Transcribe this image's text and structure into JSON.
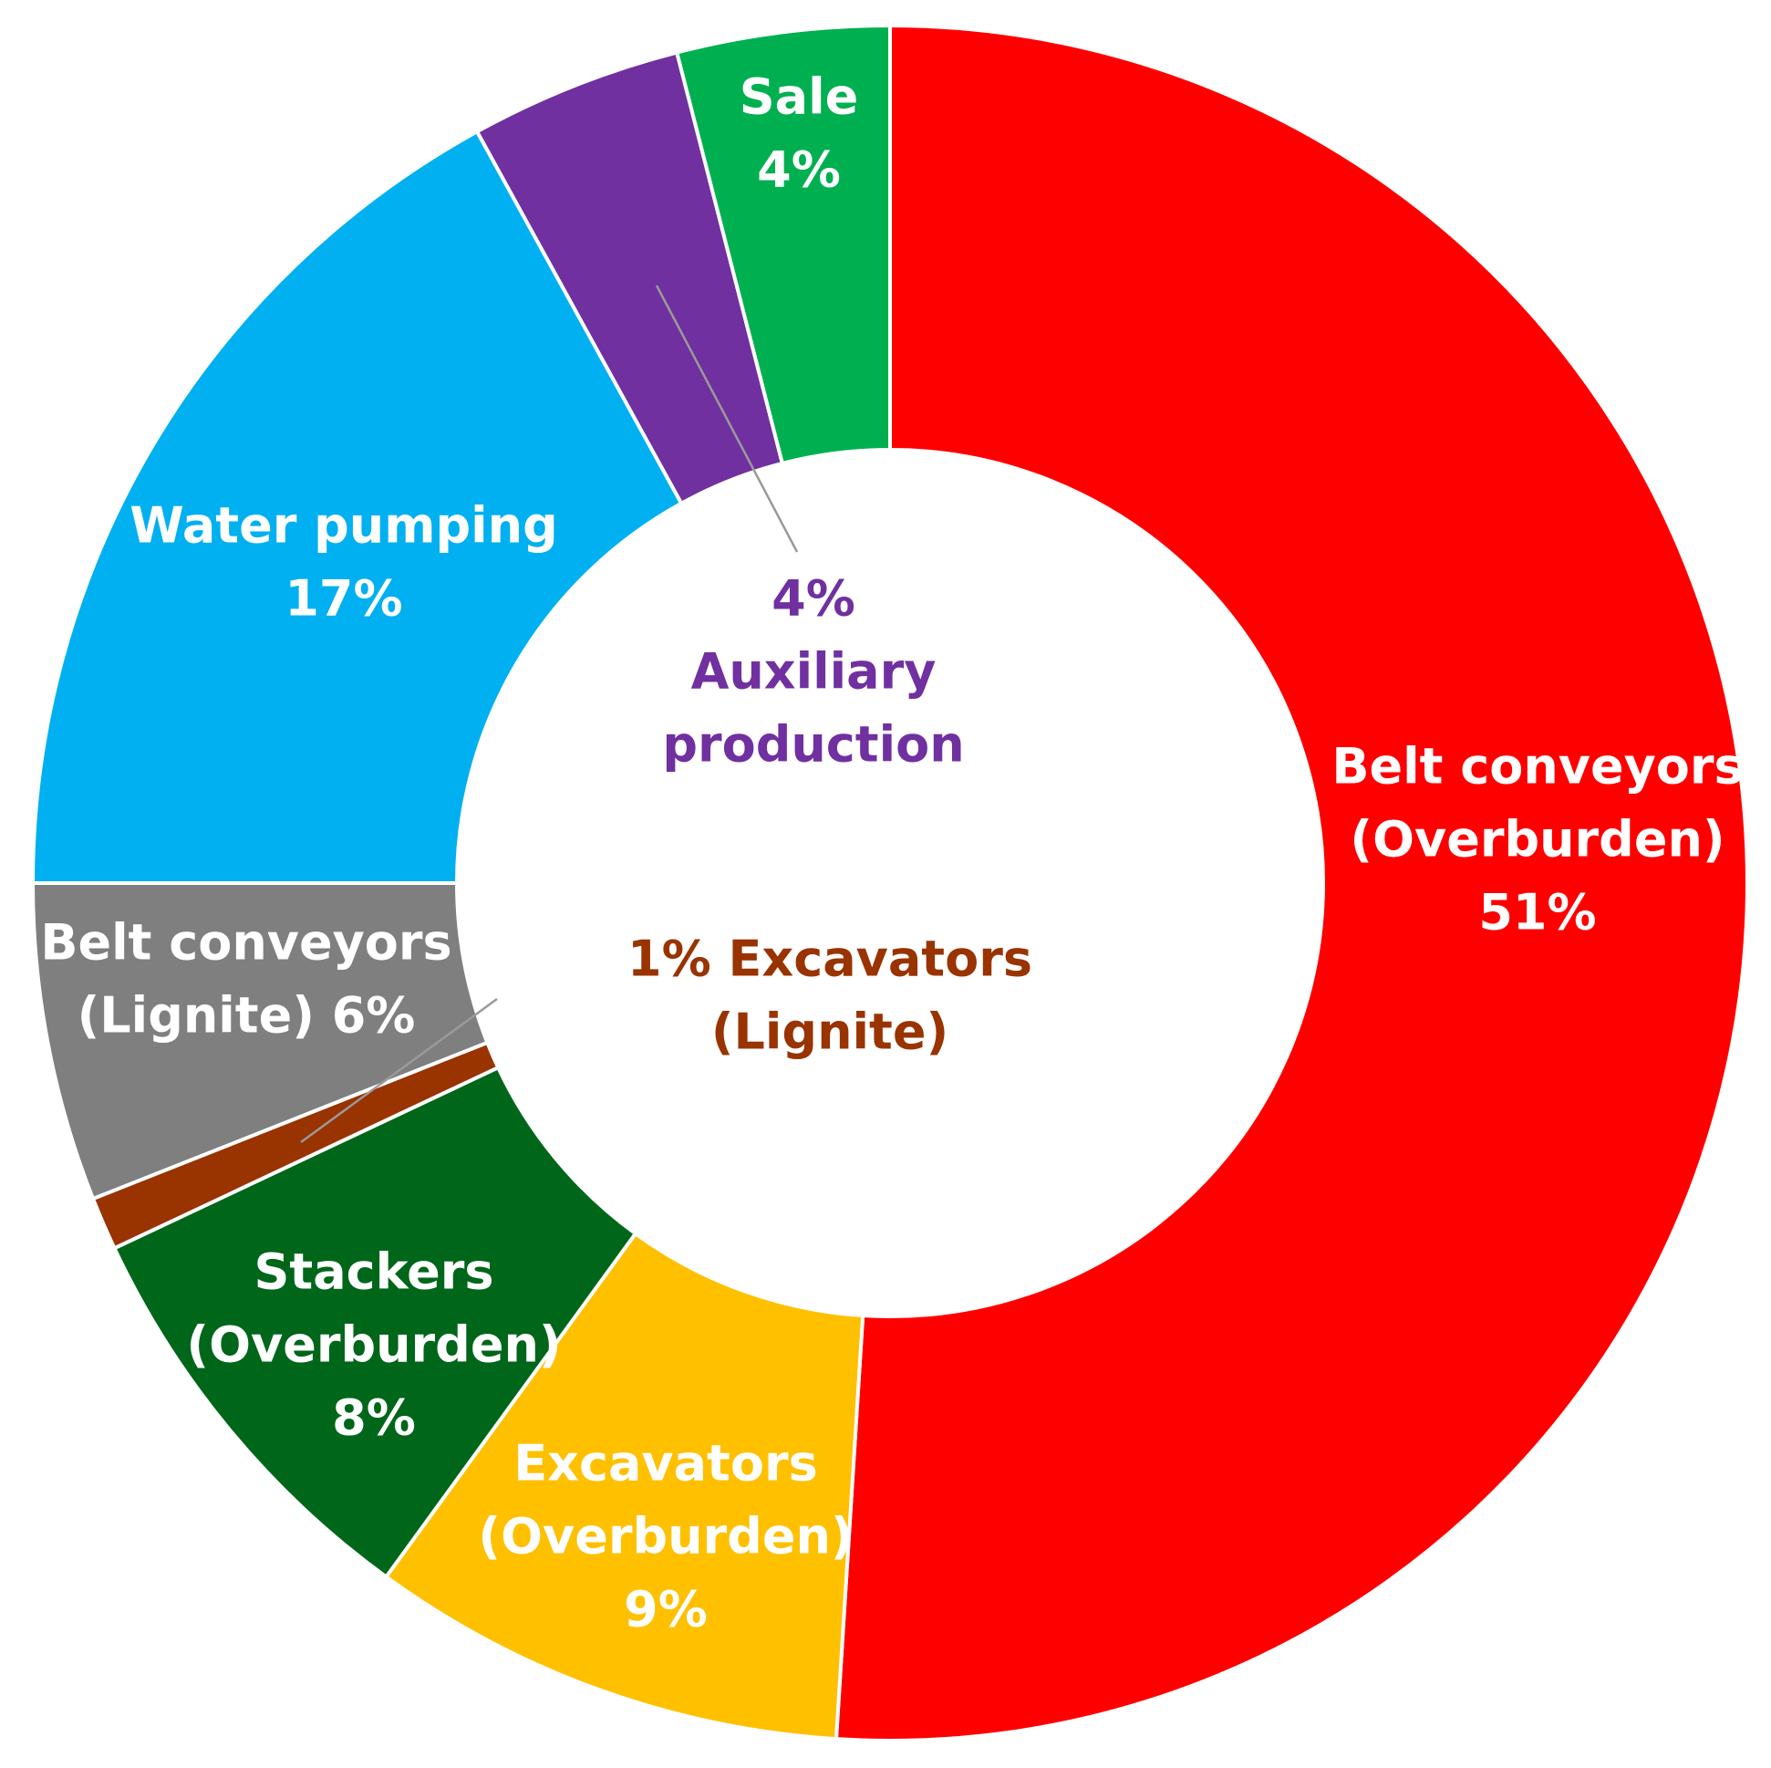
{
  "chart_data": {
    "type": "pie",
    "variant": "donut",
    "title": "",
    "start_angle_deg": 0,
    "direction": "clockwise",
    "slices": [
      {
        "id": "belt-ob",
        "value": 51,
        "color": "#FF0000",
        "label_lines": [
          "Belt conveyors",
          "(Overburden)",
          "51%"
        ],
        "label_color": "#FFFFFF",
        "label_position": "inside"
      },
      {
        "id": "exc-ob",
        "value": 9,
        "color": "#FFC000",
        "label_lines": [
          "Excavators",
          "(Overburden)",
          "9%"
        ],
        "label_color": "#FFFFFF",
        "label_position": "inside"
      },
      {
        "id": "stackers",
        "value": 8,
        "color": "#006619",
        "label_lines": [
          "Stackers",
          "(Overburden)",
          "8%"
        ],
        "label_color": "#FFFFFF",
        "label_position": "inside"
      },
      {
        "id": "exc-lig",
        "value": 1,
        "color": "#993300",
        "label_lines": [
          "1% Excavators",
          "(Lignite)"
        ],
        "label_color": "#993300",
        "label_position": "center-with-leader"
      },
      {
        "id": "belt-lig",
        "value": 6,
        "color": "#7F7F7F",
        "label_lines": [
          "Belt conveyors",
          "(Lignite) 6%"
        ],
        "label_color": "#FFFFFF",
        "label_position": "inside"
      },
      {
        "id": "water",
        "value": 17,
        "color": "#00B0F0",
        "label_lines": [
          "Water pumping",
          "17%"
        ],
        "label_color": "#FFFFFF",
        "label_position": "inside"
      },
      {
        "id": "aux",
        "value": 4,
        "color": "#7030A0",
        "label_lines": [
          "4%",
          "Auxiliary",
          "production"
        ],
        "label_color": "#7030A0",
        "label_position": "center-with-leader"
      },
      {
        "id": "sale",
        "value": 4,
        "color": "#00B050",
        "label_lines": [
          "Sale",
          "4%"
        ],
        "label_color": "#FFFFFF",
        "label_position": "inside"
      }
    ]
  }
}
